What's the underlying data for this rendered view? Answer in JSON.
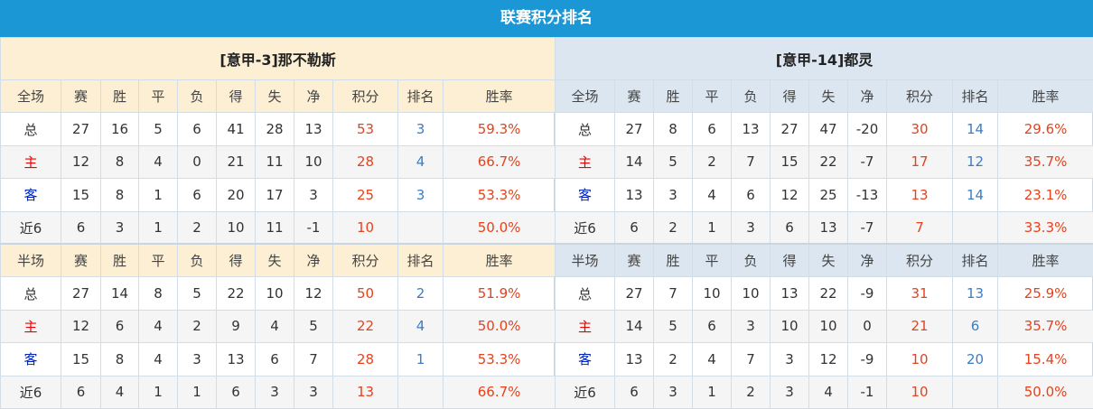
{
  "title": "联赛积分排名",
  "colors": {
    "title_bg": "#1b97d6",
    "points": "#e5421d",
    "rank": "#3a7dc6",
    "home": "#ee0000",
    "away": "#0022bb"
  },
  "columns": [
    "赛",
    "胜",
    "平",
    "负",
    "得",
    "失",
    "净",
    "积分",
    "排名",
    "胜率"
  ],
  "teams": [
    {
      "name": "[意甲-3]那不勒斯",
      "sections": [
        {
          "label": "全场",
          "rows": [
            {
              "type": "总",
              "cells": [
                "27",
                "16",
                "5",
                "6",
                "41",
                "28",
                "13",
                "53",
                "3",
                "59.3%"
              ]
            },
            {
              "type": "主",
              "cells": [
                "12",
                "8",
                "4",
                "0",
                "21",
                "11",
                "10",
                "28",
                "4",
                "66.7%"
              ]
            },
            {
              "type": "客",
              "cells": [
                "15",
                "8",
                "1",
                "6",
                "20",
                "17",
                "3",
                "25",
                "3",
                "53.3%"
              ]
            },
            {
              "type": "近6",
              "cells": [
                "6",
                "3",
                "1",
                "2",
                "10",
                "11",
                "-1",
                "10",
                "",
                "50.0%"
              ]
            }
          ]
        },
        {
          "label": "半场",
          "rows": [
            {
              "type": "总",
              "cells": [
                "27",
                "14",
                "8",
                "5",
                "22",
                "10",
                "12",
                "50",
                "2",
                "51.9%"
              ]
            },
            {
              "type": "主",
              "cells": [
                "12",
                "6",
                "4",
                "2",
                "9",
                "4",
                "5",
                "22",
                "4",
                "50.0%"
              ]
            },
            {
              "type": "客",
              "cells": [
                "15",
                "8",
                "4",
                "3",
                "13",
                "6",
                "7",
                "28",
                "1",
                "53.3%"
              ]
            },
            {
              "type": "近6",
              "cells": [
                "6",
                "4",
                "1",
                "1",
                "6",
                "3",
                "3",
                "13",
                "",
                "66.7%"
              ]
            }
          ]
        }
      ]
    },
    {
      "name": "[意甲-14]都灵",
      "sections": [
        {
          "label": "全场",
          "rows": [
            {
              "type": "总",
              "cells": [
                "27",
                "8",
                "6",
                "13",
                "27",
                "47",
                "-20",
                "30",
                "14",
                "29.6%"
              ]
            },
            {
              "type": "主",
              "cells": [
                "14",
                "5",
                "2",
                "7",
                "15",
                "22",
                "-7",
                "17",
                "12",
                "35.7%"
              ]
            },
            {
              "type": "客",
              "cells": [
                "13",
                "3",
                "4",
                "6",
                "12",
                "25",
                "-13",
                "13",
                "14",
                "23.1%"
              ]
            },
            {
              "type": "近6",
              "cells": [
                "6",
                "2",
                "1",
                "3",
                "6",
                "13",
                "-7",
                "7",
                "",
                "33.3%"
              ]
            }
          ]
        },
        {
          "label": "半场",
          "rows": [
            {
              "type": "总",
              "cells": [
                "27",
                "7",
                "10",
                "10",
                "13",
                "22",
                "-9",
                "31",
                "13",
                "25.9%"
              ]
            },
            {
              "type": "主",
              "cells": [
                "14",
                "5",
                "6",
                "3",
                "10",
                "10",
                "0",
                "21",
                "6",
                "35.7%"
              ]
            },
            {
              "type": "客",
              "cells": [
                "13",
                "2",
                "4",
                "7",
                "3",
                "12",
                "-9",
                "10",
                "20",
                "15.4%"
              ]
            },
            {
              "type": "近6",
              "cells": [
                "6",
                "3",
                "1",
                "2",
                "3",
                "4",
                "-1",
                "10",
                "",
                "50.0%"
              ]
            }
          ]
        }
      ]
    }
  ]
}
